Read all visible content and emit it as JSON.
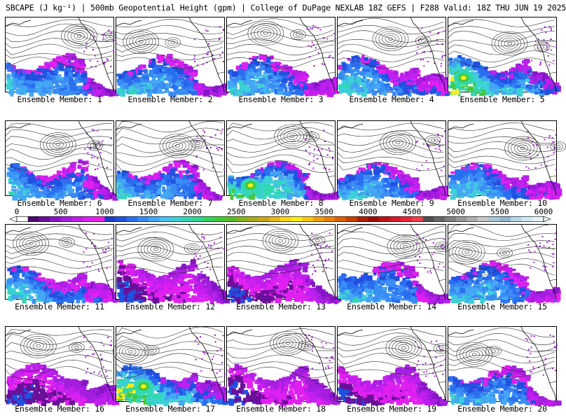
{
  "header": {
    "title": "SBCAPE (J kg⁻¹) | 500mb Geopotential Height (gpm) | College of DuPage NEXLAB 18Z GEFS | F288 Valid: 18Z THU JUN 19 2025"
  },
  "label_prefix": "Ensemble Member: ",
  "members": [
    {
      "label": "Ensemble Member: 1",
      "cape_level": "moderate"
    },
    {
      "label": "Ensemble Member: 2",
      "cape_level": "moderate"
    },
    {
      "label": "Ensemble Member: 3",
      "cape_level": "moderate"
    },
    {
      "label": "Ensemble Member: 4",
      "cape_level": "moderate"
    },
    {
      "label": "Ensemble Member: 5",
      "cape_level": "high"
    },
    {
      "label": "Ensemble Member: 6",
      "cape_level": "moderate"
    },
    {
      "label": "Ensemble Member: 7",
      "cape_level": "moderate"
    },
    {
      "label": "Ensemble Member: 8",
      "cape_level": "high"
    },
    {
      "label": "Ensemble Member: 9",
      "cape_level": "moderate"
    },
    {
      "label": "Ensemble Member: 10",
      "cape_level": "moderate"
    },
    {
      "label": "Ensemble Member: 11",
      "cape_level": "moderate"
    },
    {
      "label": "Ensemble Member: 12",
      "cape_level": "low"
    },
    {
      "label": "Ensemble Member: 13",
      "cape_level": "low"
    },
    {
      "label": "Ensemble Member: 14",
      "cape_level": "moderate"
    },
    {
      "label": "Ensemble Member: 15",
      "cape_level": "moderate"
    },
    {
      "label": "Ensemble Member: 16",
      "cape_level": "low"
    },
    {
      "label": "Ensemble Member: 17",
      "cape_level": "high"
    },
    {
      "label": "Ensemble Member: 18",
      "cape_level": "low"
    },
    {
      "label": "Ensemble Member: 19",
      "cape_level": "low"
    },
    {
      "label": "Ensemble Member: 20",
      "cape_level": "moderate"
    }
  ],
  "colorbar": {
    "ticks": [
      "0",
      "500",
      "1000",
      "1500",
      "2000",
      "2500",
      "3000",
      "3500",
      "4000",
      "4500",
      "5000",
      "5500",
      "6000"
    ],
    "min": 0,
    "max": 6000,
    "colors": [
      "#ffffff",
      "#4b0a6e",
      "#6a0f9a",
      "#8614c6",
      "#a51ee0",
      "#c21ef0",
      "#e020f0",
      "#f01ee6",
      "#1e3cc8",
      "#2050e0",
      "#2a6ef0",
      "#3a8cf5",
      "#44a6f5",
      "#4cc0f0",
      "#3cd0d8",
      "#30d8b0",
      "#2ed890",
      "#36d060",
      "#44c83a",
      "#58bc2a",
      "#84b41e",
      "#a8aa1e",
      "#c8a81a",
      "#e8b814",
      "#f8d814",
      "#fcec18",
      "#f8c810",
      "#f0a00c",
      "#e88008",
      "#d86008",
      "#c84006",
      "#b02004",
      "#9c0c04",
      "#c01018",
      "#d81828",
      "#ec2438",
      "#f43c4c",
      "#505050",
      "#686868",
      "#808080",
      "#989898",
      "#b0b0b0",
      "#c8c8c8",
      "#a8c8d8",
      "#90b8cc",
      "#b8d8e8",
      "#d0e8f0",
      "#e8f4f8"
    ]
  }
}
